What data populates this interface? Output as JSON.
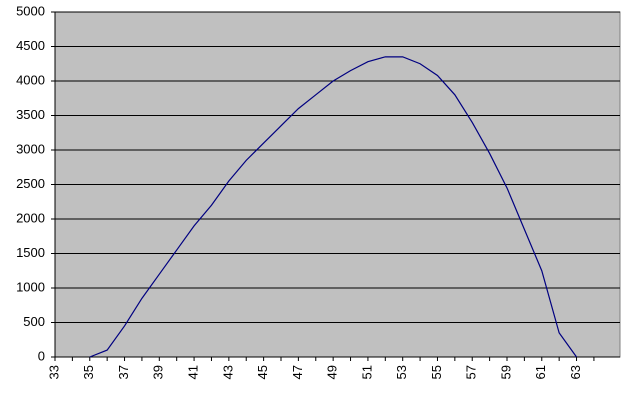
{
  "chart_data": {
    "type": "line",
    "categories": [
      "33",
      null,
      "35",
      null,
      "37",
      null,
      "39",
      null,
      "41",
      null,
      "43",
      null,
      "45",
      null,
      "47",
      null,
      "49",
      null,
      "51",
      null,
      "53",
      null,
      "55",
      null,
      "57",
      null,
      "59",
      null,
      "61",
      null,
      "63",
      null
    ],
    "series": [
      {
        "color": "#000080",
        "values": [
          null,
          null,
          0,
          100,
          450,
          850,
          1200,
          1550,
          1900,
          2200,
          2550,
          2850,
          3100,
          3350,
          3600,
          3800,
          4000,
          4150,
          4280,
          4350,
          4350,
          4250,
          4080,
          3800,
          3400,
          2950,
          2450,
          1850,
          1250,
          350,
          0,
          null
        ]
      }
    ],
    "ylim": [
      0,
      5000
    ],
    "yticks": [
      0,
      500,
      1000,
      1500,
      2000,
      2500,
      3000,
      3500,
      4000,
      4500,
      5000
    ],
    "grid": true,
    "background": "#c0c0c0"
  }
}
